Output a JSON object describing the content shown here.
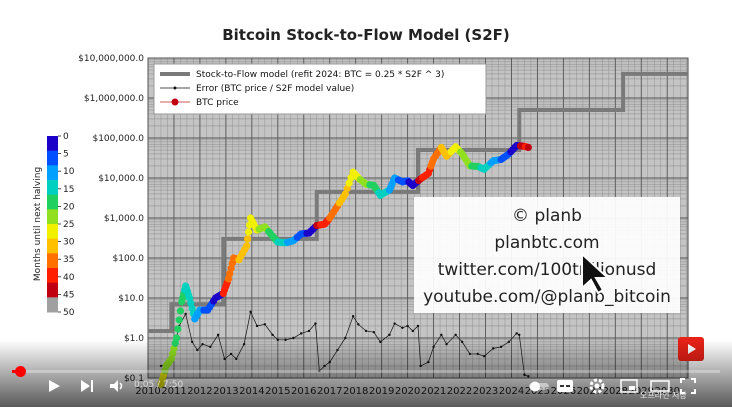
{
  "chart_data": {
    "type": "scatter",
    "title": "Bitcoin Stock-to-Flow Model (S2F)",
    "y_scale": "log",
    "ylim": [
      0.1,
      10000000
    ],
    "y_ticks": [
      "$10,000,000.0",
      "$1,000,000.0",
      "$100,000.0",
      "$10,000.0",
      "$1,000.0",
      "$100.0",
      "$10.0",
      "$1.0",
      "$0.1"
    ],
    "x_ticks": [
      "2010",
      "2011",
      "2012",
      "2013",
      "2014",
      "2015",
      "2016",
      "2017",
      "2018",
      "2019",
      "2020",
      "2021",
      "2022",
      "2023",
      "2024",
      "2025",
      "2026",
      "2027",
      "2028",
      "2029",
      "2030"
    ],
    "grid": true,
    "legend_position": "top-left",
    "legend": [
      "Stock-to-Flow model (refit 2024:  BTC = 0.25 * S2F ^ 3)",
      "Error (BTC price / S2F model value)",
      "BTC price"
    ],
    "colorbar": {
      "label": "Months until next halving",
      "ticks": [
        "0",
        "5",
        "10",
        "15",
        "20",
        "25",
        "30",
        "35",
        "40",
        "45",
        "50"
      ]
    },
    "s2f_model_steps": [
      {
        "x0": 2010.0,
        "x1": 2010.9,
        "y": 1.5
      },
      {
        "x0": 2010.9,
        "x1": 2012.9,
        "y": 7
      },
      {
        "x0": 2012.9,
        "x1": 2016.5,
        "y": 300
      },
      {
        "x0": 2016.5,
        "x1": 2020.4,
        "y": 4500
      },
      {
        "x0": 2020.4,
        "x1": 2024.3,
        "y": 50000
      },
      {
        "x0": 2024.3,
        "x1": 2028.3,
        "y": 500000
      },
      {
        "x0": 2028.3,
        "x1": 2030.8,
        "y": 4000000
      }
    ],
    "btc_price": [
      [
        2010.5,
        0.07
      ],
      [
        2010.7,
        0.2
      ],
      [
        2010.9,
        0.3
      ],
      [
        2011.1,
        1
      ],
      [
        2011.3,
        8
      ],
      [
        2011.45,
        20
      ],
      [
        2011.6,
        10
      ],
      [
        2011.8,
        3
      ],
      [
        2012.0,
        5
      ],
      [
        2012.3,
        5
      ],
      [
        2012.6,
        10
      ],
      [
        2012.9,
        13
      ],
      [
        2013.1,
        30
      ],
      [
        2013.3,
        100
      ],
      [
        2013.5,
        90
      ],
      [
        2013.8,
        200
      ],
      [
        2013.95,
        1000
      ],
      [
        2014.2,
        500
      ],
      [
        2014.5,
        600
      ],
      [
        2014.8,
        350
      ],
      [
        2015.0,
        250
      ],
      [
        2015.3,
        240
      ],
      [
        2015.6,
        270
      ],
      [
        2015.9,
        400
      ],
      [
        2016.2,
        420
      ],
      [
        2016.5,
        650
      ],
      [
        2016.8,
        700
      ],
      [
        2017.0,
        1000
      ],
      [
        2017.3,
        2000
      ],
      [
        2017.6,
        4000
      ],
      [
        2017.9,
        14000
      ],
      [
        2018.1,
        10000
      ],
      [
        2018.4,
        7000
      ],
      [
        2018.7,
        6500
      ],
      [
        2018.95,
        3700
      ],
      [
        2019.3,
        5000
      ],
      [
        2019.5,
        10000
      ],
      [
        2019.8,
        8000
      ],
      [
        2020.0,
        8500
      ],
      [
        2020.2,
        6500
      ],
      [
        2020.5,
        9500
      ],
      [
        2020.8,
        13000
      ],
      [
        2021.0,
        30000
      ],
      [
        2021.3,
        58000
      ],
      [
        2021.5,
        35000
      ],
      [
        2021.85,
        60000
      ],
      [
        2022.1,
        40000
      ],
      [
        2022.4,
        20000
      ],
      [
        2022.7,
        19500
      ],
      [
        2022.95,
        16500
      ],
      [
        2023.3,
        27000
      ],
      [
        2023.6,
        29000
      ],
      [
        2023.9,
        40000
      ],
      [
        2024.2,
        65000
      ],
      [
        2024.5,
        62000
      ],
      [
        2024.65,
        58000
      ]
    ],
    "error_ratio": [
      [
        2010.5,
        0.2
      ],
      [
        2010.8,
        0.25
      ],
      [
        2011.0,
        0.5
      ],
      [
        2011.2,
        2
      ],
      [
        2011.45,
        4
      ],
      [
        2011.7,
        0.8
      ],
      [
        2011.9,
        0.5
      ],
      [
        2012.1,
        0.7
      ],
      [
        2012.4,
        0.6
      ],
      [
        2012.7,
        1.2
      ],
      [
        2012.95,
        0.3
      ],
      [
        2013.2,
        0.4
      ],
      [
        2013.4,
        0.3
      ],
      [
        2013.7,
        0.7
      ],
      [
        2013.95,
        4.5
      ],
      [
        2014.2,
        2
      ],
      [
        2014.5,
        2.2
      ],
      [
        2014.8,
        1.2
      ],
      [
        2015.0,
        0.9
      ],
      [
        2015.3,
        0.9
      ],
      [
        2015.6,
        1
      ],
      [
        2015.9,
        1.3
      ],
      [
        2016.2,
        1.5
      ],
      [
        2016.45,
        2.3
      ],
      [
        2016.6,
        0.15
      ],
      [
        2016.8,
        0.2
      ],
      [
        2017.0,
        0.25
      ],
      [
        2017.3,
        0.5
      ],
      [
        2017.6,
        1
      ],
      [
        2017.9,
        3.5
      ],
      [
        2018.1,
        2.2
      ],
      [
        2018.4,
        1.5
      ],
      [
        2018.7,
        1.4
      ],
      [
        2018.95,
        0.8
      ],
      [
        2019.3,
        1.2
      ],
      [
        2019.5,
        2.3
      ],
      [
        2019.8,
        1.8
      ],
      [
        2020.0,
        2
      ],
      [
        2020.2,
        1.5
      ],
      [
        2020.4,
        2
      ],
      [
        2020.5,
        0.2
      ],
      [
        2020.8,
        0.25
      ],
      [
        2021.0,
        0.6
      ],
      [
        2021.3,
        1.2
      ],
      [
        2021.5,
        0.7
      ],
      [
        2021.85,
        1.2
      ],
      [
        2022.1,
        0.8
      ],
      [
        2022.4,
        0.4
      ],
      [
        2022.7,
        0.4
      ],
      [
        2022.95,
        0.35
      ],
      [
        2023.3,
        0.55
      ],
      [
        2023.6,
        0.6
      ],
      [
        2023.9,
        0.8
      ],
      [
        2024.2,
        1.3
      ],
      [
        2024.3,
        1.2
      ],
      [
        2024.5,
        0.12
      ],
      [
        2024.65,
        0.11
      ]
    ]
  },
  "colors": {
    "model_line": "#7a7a7a",
    "error_line": "#111111",
    "grid_major": "#555555",
    "grid_minor": "#888888",
    "plot_bg": "#c4c4c4",
    "colorscale": [
      "#1a00c8",
      "#0050ff",
      "#00a0ff",
      "#00d0c0",
      "#20d060",
      "#90e020",
      "#f0f000",
      "#ffc000",
      "#ff7000",
      "#ff2000",
      "#c00010",
      "#a0a0a0"
    ]
  },
  "watermark": {
    "lines": [
      "© planb",
      "planbtc.com",
      "twitter.com/100trillionusd",
      "youtube.com/@planb_bitcoin"
    ]
  },
  "player": {
    "time": "0:05 / 7:50",
    "progress_fraction": 0.011,
    "save_label": "오프라인 저장",
    "icons": [
      "play-icon",
      "next-icon",
      "volume-icon",
      "subtitles-icon",
      "settings-icon",
      "miniplayer-icon",
      "theater-icon",
      "fullscreen-icon"
    ]
  }
}
